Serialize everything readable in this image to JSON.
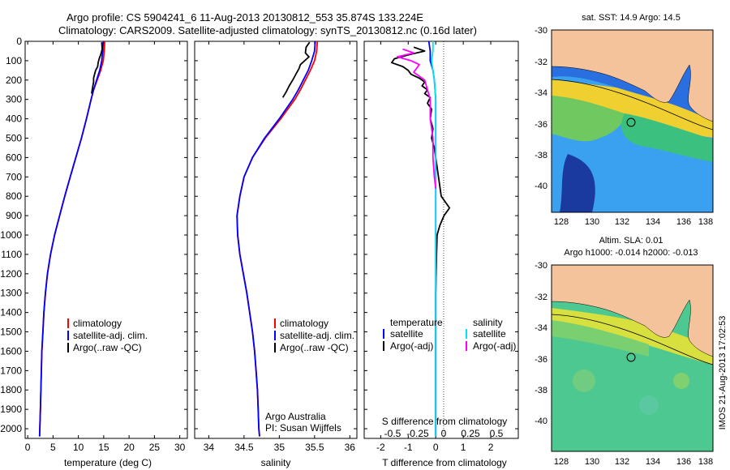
{
  "header": {
    "line1": "Argo profile: CS 5904241_6 11-Aug-2013 20130812_553 35.874S 133.224E",
    "line2": "Climatology: CARS2009. Satellite-adjusted climatology: synTS_20130812.nc (0.16d later)"
  },
  "colors": {
    "climatology": "#ff0000",
    "satellite": "#0000ff",
    "argo": "#000000",
    "salinity_satellite": "#00e5ee",
    "salinity_argo": "#ff00ff",
    "land": "#f5c39b"
  },
  "depth_axis": {
    "ylim": [
      2050,
      0
    ],
    "ticks": [
      0,
      100,
      200,
      300,
      400,
      500,
      600,
      700,
      800,
      900,
      1000,
      1100,
      1200,
      1300,
      1400,
      1500,
      1600,
      1700,
      1800,
      1900,
      2000
    ]
  },
  "chart_data": [
    {
      "id": "temperature",
      "type": "line",
      "xlabel": "temperature (deg C)",
      "xlim": [
        -0.5,
        31.5
      ],
      "xticks": [
        0,
        5,
        10,
        15,
        20,
        25,
        30
      ],
      "ylim": [
        2050,
        0
      ],
      "legend": [
        "climatology",
        "satellite-adj. clim.",
        "Argo(..raw -QC)"
      ],
      "legend_position": "lower-center",
      "series": [
        {
          "name": "climatology",
          "color": "#ff0000",
          "depth": [
            0,
            50,
            100,
            150,
            200,
            250,
            300,
            400,
            500,
            600,
            700,
            800,
            900,
            1000,
            1100,
            1200,
            1300,
            1400,
            1500,
            1600,
            1700,
            1800,
            1900,
            2000,
            2040
          ],
          "values": [
            15.2,
            15.1,
            14.9,
            14.4,
            13.7,
            13.0,
            12.5,
            11.6,
            10.6,
            9.5,
            8.4,
            7.3,
            6.3,
            5.3,
            4.5,
            3.9,
            3.5,
            3.2,
            3.0,
            2.8,
            2.7,
            2.6,
            2.5,
            2.4,
            2.35
          ]
        },
        {
          "name": "satellite-adj. clim.",
          "color": "#0000ff",
          "depth": [
            0,
            50,
            100,
            150,
            200,
            250,
            300,
            400,
            500,
            600,
            700,
            800,
            900,
            1000,
            1100,
            1200,
            1300,
            1400,
            1500,
            1600,
            1700,
            1800,
            1900,
            2000,
            2040
          ],
          "values": [
            14.9,
            14.8,
            14.6,
            14.2,
            13.6,
            13.0,
            12.5,
            11.6,
            10.6,
            9.5,
            8.4,
            7.3,
            6.3,
            5.3,
            4.5,
            3.9,
            3.5,
            3.2,
            3.0,
            2.8,
            2.7,
            2.6,
            2.5,
            2.4,
            2.35
          ]
        },
        {
          "name": "Argo(..raw -QC)",
          "color": "#000000",
          "depth": [
            5,
            40,
            70,
            90,
            110,
            130,
            150,
            170,
            190,
            210,
            240,
            270
          ],
          "values": [
            14.6,
            14.7,
            14.4,
            14.1,
            13.9,
            13.8,
            13.4,
            13.2,
            13.0,
            13.0,
            12.8,
            12.6
          ]
        }
      ]
    },
    {
      "id": "salinity",
      "type": "line",
      "xlabel": "salinity",
      "xlim": [
        33.8,
        36.1
      ],
      "xticks": [
        34,
        34.5,
        35,
        35.5,
        36
      ],
      "ylim": [
        2050,
        0
      ],
      "legend": [
        "climatology",
        "satellite-adj. clim.",
        "Argo(..raw -QC)"
      ],
      "legend_position": "lower-right",
      "series": [
        {
          "name": "climatology",
          "color": "#ff0000",
          "depth": [
            0,
            50,
            100,
            150,
            200,
            250,
            300,
            400,
            500,
            600,
            700,
            800,
            900,
            1000,
            1100,
            1200,
            1300,
            1400,
            1500,
            1600,
            1700,
            1800,
            1900,
            2000,
            2040
          ],
          "values": [
            35.54,
            35.53,
            35.5,
            35.44,
            35.37,
            35.3,
            35.22,
            35.02,
            34.8,
            34.62,
            34.5,
            34.44,
            34.4,
            34.41,
            34.44,
            34.49,
            34.54,
            34.58,
            34.62,
            34.65,
            34.67,
            34.69,
            34.7,
            34.71,
            34.72
          ]
        },
        {
          "name": "satellite-adj. clim.",
          "color": "#0000ff",
          "depth": [
            0,
            50,
            100,
            150,
            200,
            250,
            300,
            400,
            500,
            600,
            700,
            800,
            900,
            1000,
            1100,
            1200,
            1300,
            1400,
            1500,
            1600,
            1700,
            1800,
            1900,
            2000,
            2040
          ],
          "values": [
            35.51,
            35.5,
            35.46,
            35.41,
            35.34,
            35.27,
            35.19,
            35.0,
            34.79,
            34.62,
            34.5,
            34.44,
            34.4,
            34.41,
            34.44,
            34.49,
            34.54,
            34.58,
            34.62,
            34.65,
            34.67,
            34.69,
            34.7,
            34.71,
            34.72
          ]
        },
        {
          "name": "Argo(..raw -QC)",
          "color": "#000000",
          "depth": [
            5,
            30,
            60,
            80,
            100,
            120,
            140,
            160,
            180,
            200,
            230,
            260,
            290
          ],
          "values": [
            35.43,
            35.38,
            35.37,
            35.42,
            35.36,
            35.3,
            35.28,
            35.25,
            35.22,
            35.19,
            35.14,
            35.1,
            35.05
          ]
        }
      ]
    },
    {
      "id": "difference",
      "type": "line",
      "xlabel": "T difference from climatology",
      "x2label": "S difference from climatology",
      "xlim": [
        -2.6,
        3.0
      ],
      "xticks": [
        -2,
        -1,
        0,
        1,
        2
      ],
      "x2ticks": [
        "-0.5",
        "-0.25",
        "0",
        "0.25",
        "0.5"
      ],
      "x2tick_positions_T": [
        -2,
        -1,
        0,
        1,
        2
      ],
      "ylim": [
        2050,
        0
      ],
      "legend_headers": [
        "temperature",
        "salinity"
      ],
      "legend": [
        "satellite",
        "Argo(-adj)",
        "satellite",
        "Argo(-adj)"
      ],
      "legend_position": "lower-center",
      "series": [
        {
          "name": "temperature satellite",
          "color": "#0000ff",
          "depth": [
            0,
            50,
            100,
            150,
            200,
            300,
            500,
            1000,
            1500,
            2000,
            2040
          ],
          "values": [
            -0.25,
            -0.2,
            -0.2,
            -0.1,
            -0.05,
            0,
            0,
            0,
            0,
            0,
            0
          ]
        },
        {
          "name": "temperature Argo(-adj)",
          "color": "#000000",
          "depth": [
            30,
            50,
            70,
            90,
            110,
            130,
            150,
            170,
            190,
            210,
            230,
            250,
            270,
            290,
            320,
            350,
            400,
            450,
            500,
            550,
            600,
            650,
            700,
            750,
            800,
            830,
            860,
            900,
            950,
            1000,
            1100,
            1300,
            1600,
            2000,
            2040
          ],
          "values": [
            -0.8,
            -0.4,
            -1.0,
            -1.5,
            -1.6,
            -1.2,
            -1.0,
            -0.9,
            -0.6,
            -0.4,
            -0.5,
            -0.3,
            -0.4,
            -0.2,
            -0.3,
            -0.15,
            -0.2,
            -0.1,
            -0.15,
            -0.05,
            0,
            0.05,
            0.1,
            0.15,
            0.2,
            0.35,
            0.5,
            0.3,
            0.15,
            0.05,
            0.03,
            0,
            0,
            0,
            0
          ]
        },
        {
          "name": "salinity satellite",
          "color": "#00e5ee",
          "depth": [
            0,
            50,
            100,
            150,
            200,
            300,
            500,
            1000,
            1500,
            2000,
            2040
          ],
          "values": [
            -0.1,
            -0.1,
            -0.15,
            -0.1,
            -0.05,
            0,
            0,
            0,
            0,
            0,
            0
          ]
        },
        {
          "name": "salinity Argo(-adj)",
          "color": "#ff00ff",
          "depth": [
            40,
            60,
            80,
            100,
            120,
            140,
            160,
            180,
            200,
            250,
            300,
            400,
            500,
            600,
            700,
            760
          ],
          "values": [
            -1.2,
            -0.8,
            -1.4,
            -0.9,
            -0.6,
            -0.7,
            -0.8,
            -0.6,
            -0.4,
            -0.3,
            -0.2,
            -0.2,
            -0.1,
            -0.1,
            -0.05,
            0
          ]
        }
      ]
    }
  ],
  "notes": {
    "temperature_xlabel": "temperature (deg C)",
    "salinity_xlabel": "salinity",
    "institution": "Argo Australia",
    "pi": "PI: Susan Wijffels"
  },
  "legends": {
    "temperature": [
      "climatology",
      "satellite-adj. clim.",
      "Argo(..raw -QC)"
    ],
    "salinity": [
      "climatology",
      "satellite-adj. clim.",
      "Argo(..raw -QC)"
    ],
    "diff_headers": [
      "temperature",
      "salinity"
    ],
    "diff_items": [
      "satellite",
      "Argo(-adj)",
      "satellite",
      "Argo(-adj)"
    ],
    "diff_top_label": "S difference from climatology",
    "diff_bottom_label": "T difference from climatology"
  },
  "maps": {
    "sst": {
      "title": "sat. SST: 14.9 Argo: 14.5",
      "xticks": [
        "128",
        "130",
        "132",
        "134",
        "136",
        "138"
      ],
      "yticks": [
        "-30",
        "-32",
        "-34",
        "-36",
        "-38",
        "-40"
      ]
    },
    "sla": {
      "title1": "Altim. SLA: 0.01",
      "title2": "Argo h1000: -0.014 h2000: -0.013",
      "xticks": [
        "128",
        "130",
        "132",
        "134",
        "136",
        "138"
      ],
      "yticks": [
        "-30",
        "-32",
        "-34",
        "-36",
        "-38",
        "-40"
      ]
    }
  },
  "footer": {
    "stamp": "IMOS 21-Aug-2013 17:02:53"
  }
}
